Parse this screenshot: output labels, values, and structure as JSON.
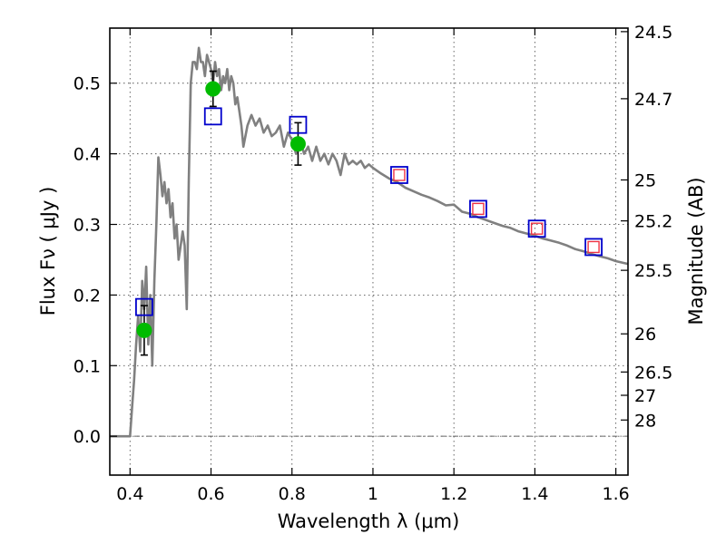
{
  "chart_data": {
    "type": "scatter",
    "title": "",
    "xlabel": "Wavelength  λ (μm)",
    "ylabel": "Flux  Fν  ( μJy )",
    "y2label": "Magnitude (AB)",
    "xlim": [
      0.35,
      1.63
    ],
    "ylim": [
      -0.055,
      0.578
    ],
    "grid": true,
    "legend": "none",
    "x_ticks": [
      0.4,
      0.6,
      0.8,
      1.0,
      1.2,
      1.4,
      1.6
    ],
    "x_tick_labels": [
      "0.4",
      "0.6",
      "0.8",
      "1",
      "1.2",
      "1.4",
      "1.6"
    ],
    "y_ticks": [
      0.0,
      0.1,
      0.2,
      0.3,
      0.4,
      0.5
    ],
    "y_tick_labels": [
      "0.0",
      "0.1",
      "0.2",
      "0.3",
      "0.4",
      "0.5"
    ],
    "mag_ticks": [
      {
        "flux": 0.573,
        "label": "24.5"
      },
      {
        "flux": 0.478,
        "label": "24.7"
      },
      {
        "flux": 0.363,
        "label": "25"
      },
      {
        "flux": 0.305,
        "label": "25.2"
      },
      {
        "flux": 0.235,
        "label": "25.5"
      },
      {
        "flux": 0.145,
        "label": "26"
      },
      {
        "flux": 0.091,
        "label": "26.5"
      },
      {
        "flux": 0.058,
        "label": "27"
      },
      {
        "flux": 0.023,
        "label": "28"
      }
    ],
    "series": [
      {
        "kind": "line",
        "color": "#808080",
        "x": [
          0.35,
          0.39,
          0.4,
          0.405,
          0.41,
          0.415,
          0.42,
          0.425,
          0.43,
          0.435,
          0.44,
          0.445,
          0.45,
          0.455,
          0.46,
          0.465,
          0.47,
          0.475,
          0.48,
          0.485,
          0.49,
          0.495,
          0.5,
          0.505,
          0.51,
          0.515,
          0.52,
          0.525,
          0.53,
          0.535,
          0.54,
          0.545,
          0.55,
          0.555,
          0.56,
          0.565,
          0.57,
          0.575,
          0.58,
          0.585,
          0.59,
          0.595,
          0.6,
          0.605,
          0.61,
          0.615,
          0.62,
          0.625,
          0.63,
          0.635,
          0.64,
          0.645,
          0.65,
          0.655,
          0.66,
          0.665,
          0.67,
          0.675,
          0.68,
          0.69,
          0.7,
          0.71,
          0.72,
          0.73,
          0.74,
          0.75,
          0.76,
          0.77,
          0.78,
          0.79,
          0.8,
          0.81,
          0.82,
          0.83,
          0.84,
          0.85,
          0.86,
          0.87,
          0.88,
          0.89,
          0.9,
          0.91,
          0.92,
          0.93,
          0.94,
          0.95,
          0.96,
          0.97,
          0.98,
          0.99,
          1.0,
          1.02,
          1.04,
          1.06,
          1.08,
          1.1,
          1.12,
          1.14,
          1.16,
          1.18,
          1.2,
          1.22,
          1.24,
          1.26,
          1.28,
          1.3,
          1.32,
          1.34,
          1.36,
          1.38,
          1.4,
          1.42,
          1.44,
          1.46,
          1.48,
          1.5,
          1.52,
          1.54,
          1.56,
          1.58,
          1.6,
          1.63
        ],
        "y": [
          0.0,
          0.0,
          0.0,
          0.04,
          0.08,
          0.13,
          0.17,
          0.12,
          0.22,
          0.18,
          0.24,
          0.13,
          0.2,
          0.1,
          0.22,
          0.3,
          0.395,
          0.37,
          0.34,
          0.36,
          0.33,
          0.35,
          0.31,
          0.33,
          0.28,
          0.3,
          0.25,
          0.27,
          0.29,
          0.27,
          0.18,
          0.36,
          0.5,
          0.53,
          0.53,
          0.52,
          0.55,
          0.53,
          0.53,
          0.51,
          0.54,
          0.53,
          0.52,
          0.5,
          0.53,
          0.51,
          0.52,
          0.49,
          0.51,
          0.5,
          0.52,
          0.49,
          0.51,
          0.5,
          0.47,
          0.48,
          0.46,
          0.44,
          0.41,
          0.44,
          0.455,
          0.44,
          0.45,
          0.43,
          0.44,
          0.425,
          0.43,
          0.44,
          0.41,
          0.43,
          0.42,
          0.4,
          0.42,
          0.4,
          0.41,
          0.39,
          0.41,
          0.39,
          0.4,
          0.385,
          0.4,
          0.39,
          0.37,
          0.4,
          0.385,
          0.39,
          0.385,
          0.39,
          0.38,
          0.385,
          0.38,
          0.372,
          0.365,
          0.36,
          0.352,
          0.347,
          0.342,
          0.338,
          0.333,
          0.327,
          0.328,
          0.318,
          0.315,
          0.31,
          0.306,
          0.302,
          0.298,
          0.295,
          0.29,
          0.287,
          0.284,
          0.28,
          0.277,
          0.274,
          0.27,
          0.265,
          0.262,
          0.258,
          0.255,
          0.252,
          0.248,
          0.244
        ]
      },
      {
        "kind": "points",
        "marker": "circle",
        "color": "#00bb00",
        "x": [
          0.435,
          0.605,
          0.815
        ],
        "y": [
          0.15,
          0.492,
          0.414
        ],
        "yerr": [
          0.035,
          0.025,
          0.03
        ]
      },
      {
        "kind": "points",
        "marker": "open-square",
        "color": "#0000cc",
        "x": [
          0.435,
          0.605,
          0.815,
          1.065,
          1.26,
          1.405,
          1.545
        ],
        "y": [
          0.183,
          0.453,
          0.441,
          0.37,
          0.322,
          0.294,
          0.268
        ]
      },
      {
        "kind": "points",
        "marker": "small-open-square",
        "color": "#ee3344",
        "x": [
          1.065,
          1.26,
          1.405,
          1.545
        ],
        "y": [
          0.37,
          0.322,
          0.294,
          0.268
        ]
      }
    ]
  }
}
